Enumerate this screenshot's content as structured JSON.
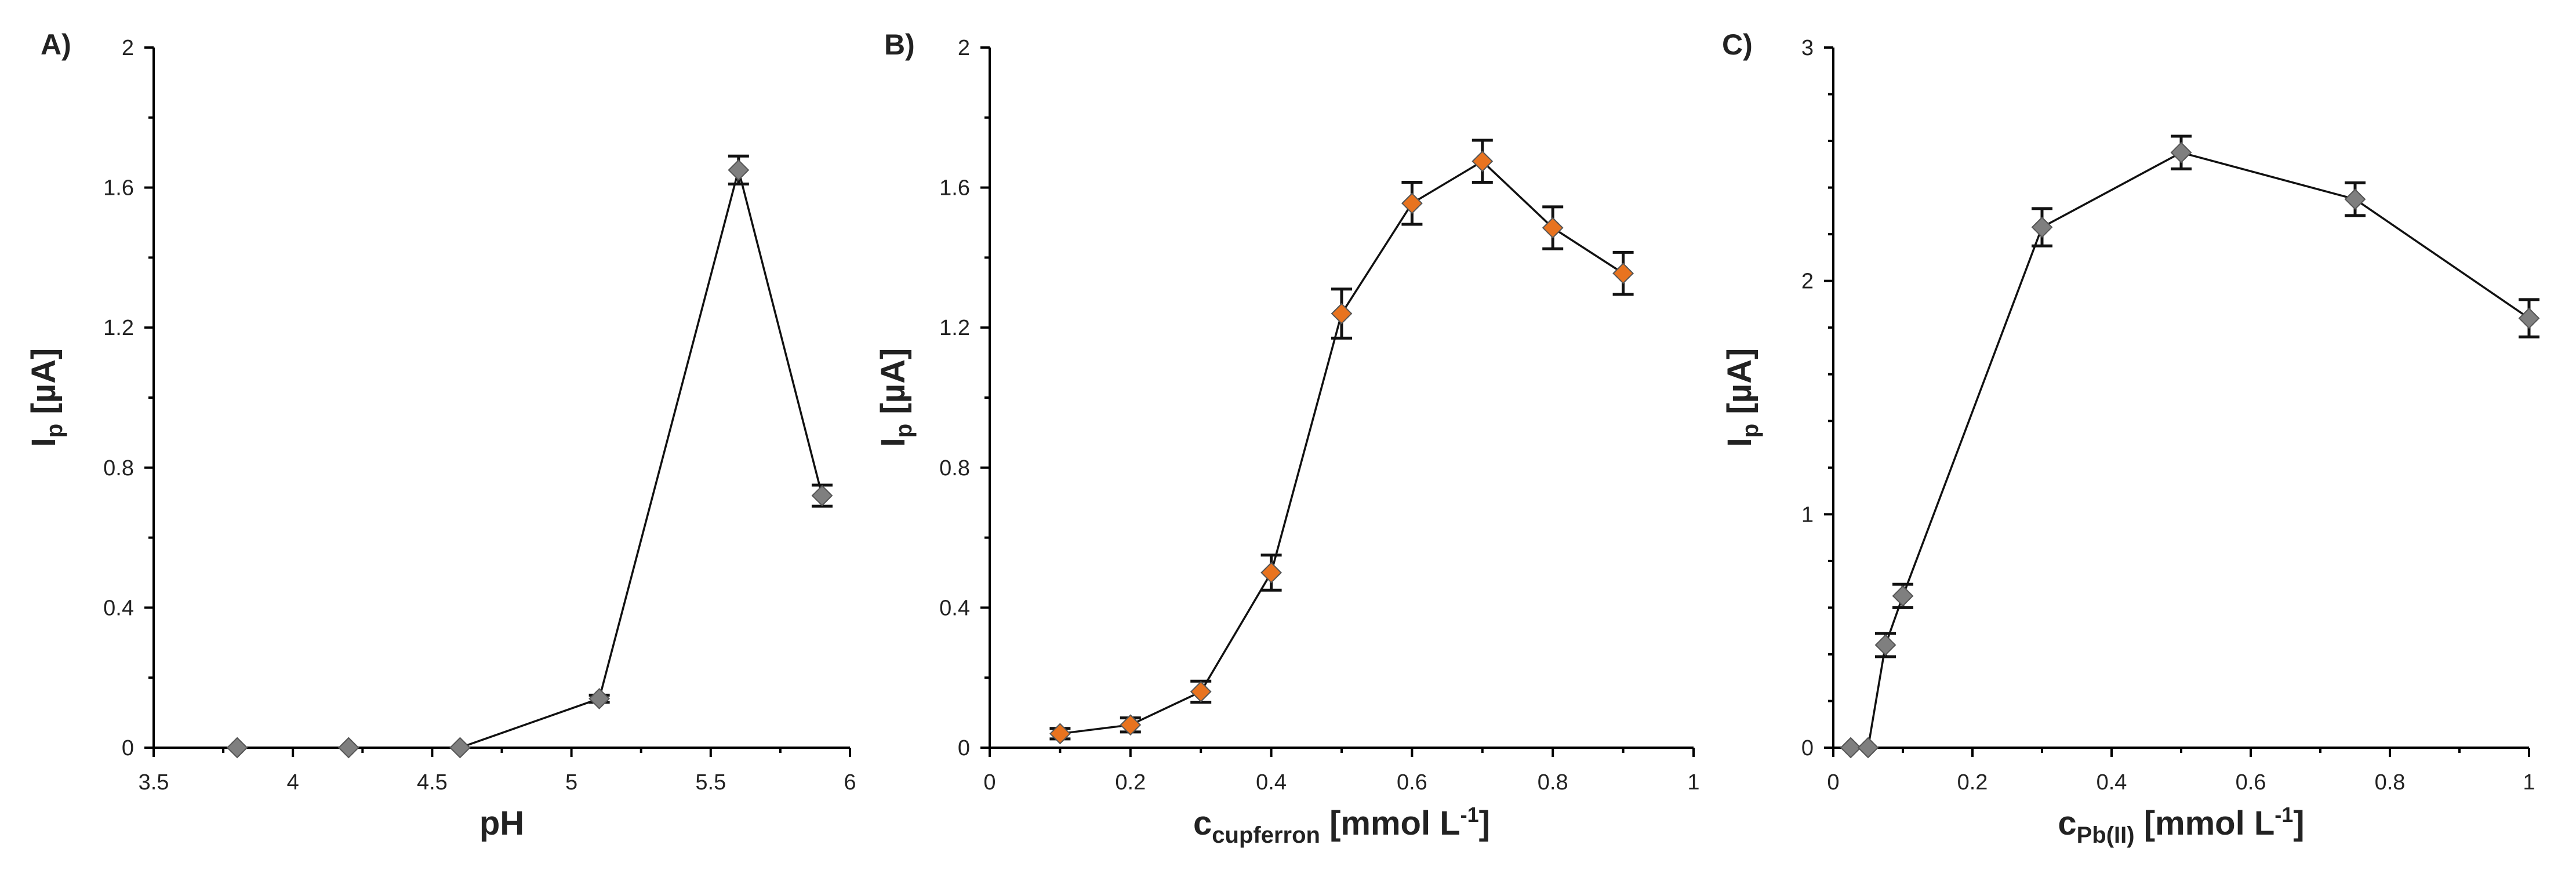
{
  "colors": {
    "marker_gray": "#7f7f7f",
    "marker_orange": "#e8731f",
    "marker_edge": "#555555",
    "line": "#111111"
  },
  "chart_data": [
    {
      "type": "line",
      "panel_label": "A)",
      "xlabel": "pH",
      "ylabel_main": "I",
      "ylabel_sub": "p",
      "ylabel_tail": " [µA]",
      "xlim": [
        3.5,
        6
      ],
      "ylim": [
        0,
        2
      ],
      "xticks": [
        3.5,
        4,
        4.5,
        5,
        5.5,
        6
      ],
      "xtick_labels": [
        "3.5",
        "4",
        "4.5",
        "5",
        "5.5",
        "6"
      ],
      "yticks": [
        0,
        0.4,
        0.8,
        1.2,
        1.6,
        2
      ],
      "ytick_labels": [
        "0",
        "0.4",
        "0.8",
        "1.2",
        "1.6",
        "2"
      ],
      "marker_color": "#7f7f7f",
      "points": [
        {
          "x": 3.8,
          "y": 0.0,
          "err": 0,
          "connected": false
        },
        {
          "x": 4.2,
          "y": 0.0,
          "err": 0,
          "connected": false
        },
        {
          "x": 4.6,
          "y": 0.0,
          "err": 0,
          "connected": true
        },
        {
          "x": 5.1,
          "y": 0.14,
          "err": 0.01,
          "connected": true
        },
        {
          "x": 5.6,
          "y": 1.65,
          "err": 0.04,
          "connected": true
        },
        {
          "x": 5.9,
          "y": 0.72,
          "err": 0.03,
          "connected": true
        }
      ]
    },
    {
      "type": "line",
      "panel_label": "B)",
      "xlabel_main": "c",
      "xlabel_sub": "cupferron",
      "xlabel_tail": " [mmol L",
      "xlabel_sup": "-1",
      "xlabel_end": "]",
      "ylabel_main": "I",
      "ylabel_sub": "p",
      "ylabel_tail": " [µA]",
      "xlim": [
        0,
        1
      ],
      "ylim": [
        0,
        2
      ],
      "xticks": [
        0,
        0.2,
        0.4,
        0.6,
        0.8,
        1
      ],
      "xtick_labels": [
        "0",
        "0.2",
        "0.4",
        "0.6",
        "0.8",
        "1"
      ],
      "yticks": [
        0,
        0.4,
        0.8,
        1.2,
        1.6,
        2
      ],
      "ytick_labels": [
        "0",
        "0.4",
        "0.8",
        "1.2",
        "1.6",
        "2"
      ],
      "marker_color": "#e8731f",
      "points": [
        {
          "x": 0.1,
          "y": 0.04,
          "err": 0.015,
          "connected": true
        },
        {
          "x": 0.2,
          "y": 0.065,
          "err": 0.02,
          "connected": true
        },
        {
          "x": 0.3,
          "y": 0.16,
          "err": 0.03,
          "connected": true
        },
        {
          "x": 0.4,
          "y": 0.5,
          "err": 0.05,
          "connected": true
        },
        {
          "x": 0.5,
          "y": 1.24,
          "err": 0.07,
          "connected": true
        },
        {
          "x": 0.6,
          "y": 1.555,
          "err": 0.06,
          "connected": true
        },
        {
          "x": 0.7,
          "y": 1.675,
          "err": 0.06,
          "connected": true
        },
        {
          "x": 0.8,
          "y": 1.485,
          "err": 0.06,
          "connected": true
        },
        {
          "x": 0.9,
          "y": 1.355,
          "err": 0.06,
          "connected": true
        }
      ]
    },
    {
      "type": "line",
      "panel_label": "C)",
      "xlabel_main": "c",
      "xlabel_sub": "Pb(II)",
      "xlabel_tail": " [mmol L",
      "xlabel_sup": "-1",
      "xlabel_end": "]",
      "ylabel_main": "I",
      "ylabel_sub": "p",
      "ylabel_tail": " [µA]",
      "xlim": [
        0,
        1
      ],
      "ylim": [
        0,
        3
      ],
      "xticks": [
        0,
        0.2,
        0.4,
        0.6,
        0.8,
        1
      ],
      "xtick_labels": [
        "0",
        "0.2",
        "0.4",
        "0.6",
        "0.8",
        "1"
      ],
      "yticks": [
        0,
        1,
        2,
        3
      ],
      "ytick_labels": [
        "0",
        "1",
        "2",
        "3"
      ],
      "marker_color": "#7f7f7f",
      "points": [
        {
          "x": 0.025,
          "y": 0.0,
          "err": 0,
          "connected": true
        },
        {
          "x": 0.05,
          "y": 0.0,
          "err": 0,
          "connected": true
        },
        {
          "x": 0.075,
          "y": 0.44,
          "err": 0.05,
          "connected": true
        },
        {
          "x": 0.1,
          "y": 0.65,
          "err": 0.05,
          "connected": true
        },
        {
          "x": 0.3,
          "y": 2.23,
          "err": 0.08,
          "connected": true
        },
        {
          "x": 0.5,
          "y": 2.55,
          "err": 0.07,
          "connected": true
        },
        {
          "x": 0.75,
          "y": 2.35,
          "err": 0.07,
          "connected": true
        },
        {
          "x": 1.0,
          "y": 1.84,
          "err": 0.08,
          "connected": true
        }
      ]
    }
  ]
}
